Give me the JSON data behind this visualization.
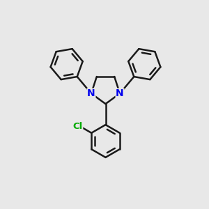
{
  "bg_color": "#e8e8e8",
  "bond_color": "#1a1a1a",
  "N_color": "#0000ee",
  "Cl_color": "#00aa00",
  "bond_width": 1.8,
  "figsize": [
    3.0,
    3.0
  ],
  "dpi": 100,
  "xlim": [
    0,
    10
  ],
  "ylim": [
    0,
    10
  ]
}
